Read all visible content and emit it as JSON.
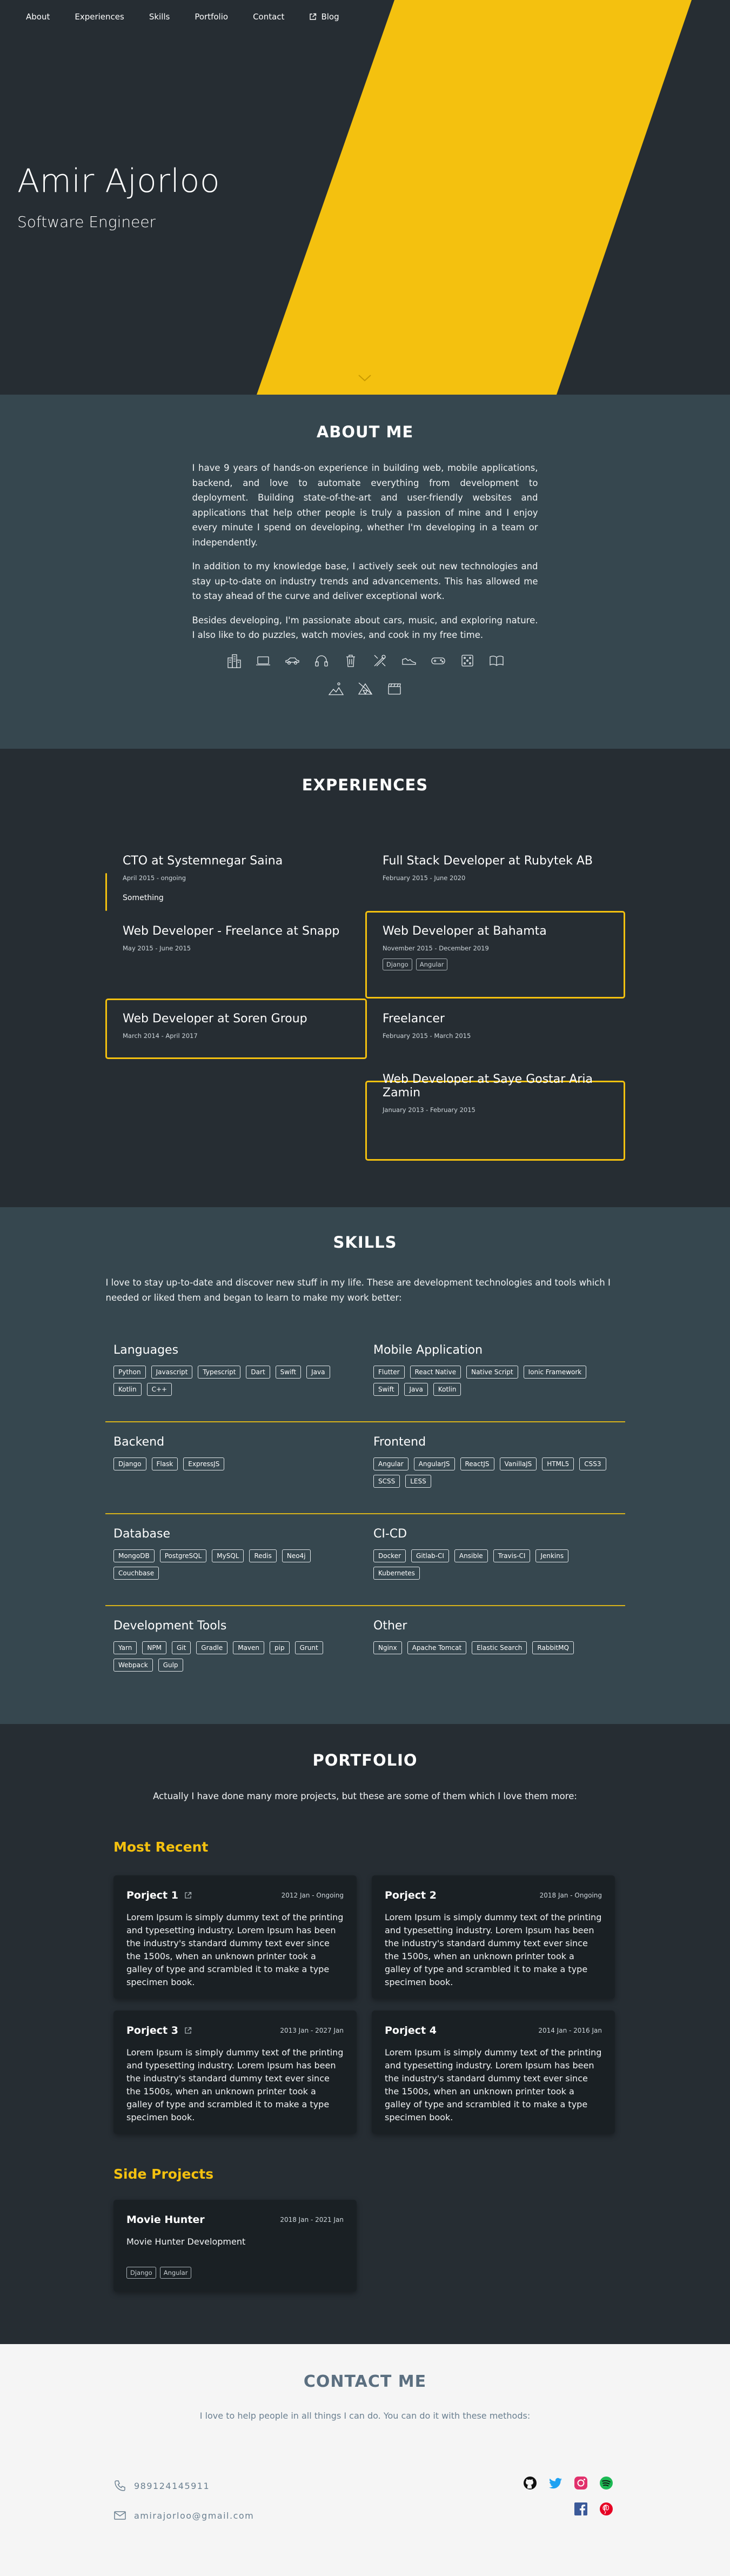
{
  "nav": {
    "items": [
      "About",
      "Experiences",
      "Skills",
      "Portfolio",
      "Contact"
    ],
    "blog": "Blog"
  },
  "hero": {
    "name": "Amir Ajorloo",
    "title": "Software Engineer",
    "accent": "#f4c10f"
  },
  "about": {
    "title": "ABOUT ME",
    "paragraphs": [
      "I have 9 years of hands-on experience in building web, mobile applications, backend, and love to automate everything from development to deployment. Building state-of-the-art and user-friendly websites and applications that help other people is truly a passion of mine and I enjoy every minute I spend on developing, whether I'm developing in a team or independently.",
      "In addition to my knowledge base, I actively seek out new technologies and stay up-to-date on industry trends and advancements. This has allowed me to stay ahead of the curve and deliver exceptional work.",
      "Besides developing, I'm passionate about cars, music, and exploring nature. I also like to do puzzles, watch movies, and cook in my free time."
    ],
    "hobby_icons": [
      "city-icon",
      "laptop-icon",
      "car-icon",
      "headphones-icon",
      "trash-icon",
      "tools-icon",
      "shoe-icon",
      "joystick-icon",
      "dice-icon",
      "book-icon",
      "hiking-icon",
      "camping-icon",
      "clapperboard-icon"
    ]
  },
  "experiences": {
    "title": "EXPERIENCES",
    "items": [
      {
        "title": "CTO at Systemnegar Saina",
        "date": "April 2015 - ongoing",
        "desc": "Something",
        "tags": []
      },
      {
        "title": "Full Stack Developer at Rubytek AB",
        "date": "February 2015 - June 2020",
        "desc": "",
        "tags": []
      },
      {
        "title": "Web Developer - Freelance at Snapp",
        "date": "May 2015 - June 2015",
        "desc": "",
        "tags": []
      },
      {
        "title": "Web Developer at Bahamta",
        "date": "November 2015 - December 2019",
        "desc": "",
        "tags": [
          "Django",
          "Angular"
        ]
      },
      {
        "title": "Web Developer at Soren Group",
        "date": "March 2014 - April 2017",
        "desc": "",
        "tags": []
      },
      {
        "title": "Freelancer",
        "date": "February 2015 - March 2015",
        "desc": "",
        "tags": []
      },
      {
        "title": "Web Developer at Saye Gostar Aria Zamin",
        "date": "January 2013 - February 2015",
        "desc": "",
        "tags": []
      }
    ]
  },
  "skills": {
    "title": "SKILLS",
    "intro": "I love to stay up-to-date and discover new stuff in my life. These are development technologies and tools which I needed or liked them and began to learn to make my work better:",
    "groups": [
      {
        "name": "Languages",
        "tags": [
          "Python",
          "Javascript",
          "Typescript",
          "Dart",
          "Swift",
          "Java",
          "Kotlin",
          "C++"
        ]
      },
      {
        "name": "Mobile Application",
        "tags": [
          "Flutter",
          "React Native",
          "Native Script",
          "Ionic Framework",
          "Swift",
          "Java",
          "Kotlin"
        ]
      },
      {
        "name": "Backend",
        "tags": [
          "Django",
          "Flask",
          "ExpressJS"
        ]
      },
      {
        "name": "Frontend",
        "tags": [
          "Angular",
          "AngularJS",
          "ReactJS",
          "VanillaJS",
          "HTML5",
          "CSS3",
          "SCSS",
          "LESS"
        ]
      },
      {
        "name": "Database",
        "tags": [
          "MongoDB",
          "PostgreSQL",
          "MySQL",
          "Redis",
          "Neo4j",
          "Couchbase"
        ]
      },
      {
        "name": "CI-CD",
        "tags": [
          "Docker",
          "Gitlab-CI",
          "Ansible",
          "Travis-CI",
          "Jenkins",
          "Kubernetes"
        ]
      },
      {
        "name": "Development Tools",
        "tags": [
          "Yarn",
          "NPM",
          "Git",
          "Gradle",
          "Maven",
          "pip",
          "Grunt",
          "Webpack",
          "Gulp"
        ]
      },
      {
        "name": "Other",
        "tags": [
          "Nginx",
          "Apache Tomcat",
          "Elastic Search",
          "RabbitMQ"
        ]
      }
    ]
  },
  "portfolio": {
    "title": "PORTFOLIO",
    "intro": "Actually I have done many more projects, but these are some of them which I love them more:",
    "most_recent_label": "Most Recent",
    "side_label": "Side Projects",
    "projects": [
      {
        "title": "Porject 1",
        "date": "2012 Jan - Ongoing",
        "desc": "Lorem Ipsum is simply dummy text of the printing and typesetting industry. Lorem Ipsum has been the industry's standard dummy text ever since the 1500s, when an unknown printer took a galley of type and scrambled it to make a type specimen book.",
        "external": true
      },
      {
        "title": "Porject 2",
        "date": "2018 Jan - Ongoing",
        "desc": "Lorem Ipsum is simply dummy text of the printing and typesetting industry. Lorem Ipsum has been the industry's standard dummy text ever since the 1500s, when an unknown printer took a galley of type and scrambled it to make a type specimen book.",
        "external": false
      },
      {
        "title": "Porject 3",
        "date": "2013 Jan - 2027 Jan",
        "desc": "Lorem Ipsum is simply dummy text of the printing and typesetting industry. Lorem Ipsum has been the industry's standard dummy text ever since the 1500s, when an unknown printer took a galley of type and scrambled it to make a type specimen book.",
        "external": true
      },
      {
        "title": "Porject 4",
        "date": "2014 Jan - 2016 Jan",
        "desc": "Lorem Ipsum is simply dummy text of the printing and typesetting industry. Lorem Ipsum has been the industry's standard dummy text ever since the 1500s, when an unknown printer took a galley of type and scrambled it to make a type specimen book.",
        "external": false
      }
    ],
    "side_projects": [
      {
        "title": "Movie Hunter",
        "date": "2018 Jan - 2021 Jan",
        "desc": "Movie Hunter Development",
        "tags": [
          "Django",
          "Angular"
        ]
      }
    ]
  },
  "contact": {
    "title": "CONTACT ME",
    "intro": "I love to help people in all things I can do. You can do it with these methods:",
    "phone": "989124145911",
    "email": "amirajorloo@gmail.com",
    "social_icons": [
      "github-icon",
      "twitter-icon",
      "instagram-icon",
      "spotify-icon",
      "facebook-icon",
      "pinterest-icon"
    ]
  }
}
